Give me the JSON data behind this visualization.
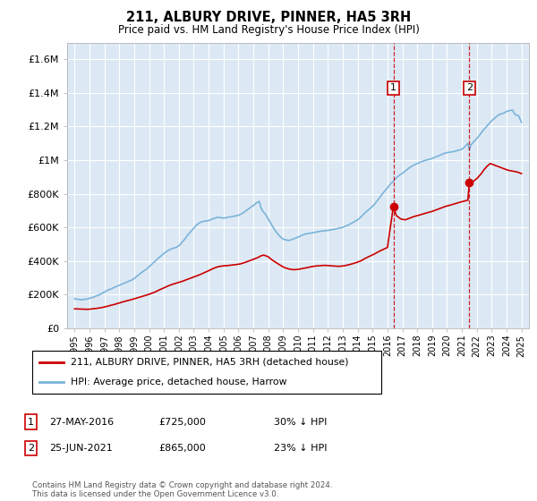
{
  "title": "211, ALBURY DRIVE, PINNER, HA5 3RH",
  "subtitle": "Price paid vs. HM Land Registry's House Price Index (HPI)",
  "footnote": "Contains HM Land Registry data © Crown copyright and database right 2024.\nThis data is licensed under the Open Government Licence v3.0.",
  "legend_line1": "211, ALBURY DRIVE, PINNER, HA5 3RH (detached house)",
  "legend_line2": "HPI: Average price, detached house, Harrow",
  "sale1_label": "1",
  "sale1_date": "27-MAY-2016",
  "sale1_price": "£725,000",
  "sale1_pct": "30% ↓ HPI",
  "sale2_label": "2",
  "sale2_date": "25-JUN-2021",
  "sale2_price": "£865,000",
  "sale2_pct": "23% ↓ HPI",
  "sale1_year": 2016.4,
  "sale2_year": 2021.5,
  "sale1_value": 725000,
  "sale2_value": 865000,
  "hpi_color": "#7ab3d9",
  "price_color": "#cc0000",
  "plot_bg": "#dce9f5",
  "grid_color": "#ffffff",
  "marker_box_color": "#cc0000",
  "dashed_line_color": "#cc0000",
  "ylim": [
    0,
    1700000
  ],
  "yticks": [
    0,
    200000,
    400000,
    600000,
    800000,
    1000000,
    1200000,
    1400000,
    1600000
  ],
  "ytick_labels": [
    "£0",
    "£200K",
    "£400K",
    "£600K",
    "£800K",
    "£1M",
    "£1.2M",
    "£1.4M",
    "£1.6M"
  ],
  "xmin": 1994.5,
  "xmax": 2025.5,
  "hpi_years": [
    1995.0,
    1995.1,
    1995.2,
    1995.3,
    1995.4,
    1995.5,
    1995.6,
    1995.7,
    1995.8,
    1995.9,
    1996.0,
    1996.1,
    1996.2,
    1996.3,
    1996.4,
    1996.5,
    1996.6,
    1996.7,
    1996.8,
    1996.9,
    1997.0,
    1997.2,
    1997.4,
    1997.6,
    1997.8,
    1998.0,
    1998.2,
    1998.4,
    1998.6,
    1998.8,
    1999.0,
    1999.2,
    1999.4,
    1999.6,
    1999.8,
    2000.0,
    2000.2,
    2000.4,
    2000.6,
    2000.8,
    2001.0,
    2001.2,
    2001.4,
    2001.6,
    2001.8,
    2002.0,
    2002.2,
    2002.4,
    2002.6,
    2002.8,
    2003.0,
    2003.2,
    2003.4,
    2003.6,
    2003.8,
    2004.0,
    2004.2,
    2004.4,
    2004.6,
    2004.8,
    2005.0,
    2005.2,
    2005.4,
    2005.6,
    2005.8,
    2006.0,
    2006.2,
    2006.4,
    2006.6,
    2006.8,
    2007.0,
    2007.2,
    2007.4,
    2007.5,
    2007.6,
    2007.8,
    2008.0,
    2008.2,
    2008.4,
    2008.6,
    2008.8,
    2009.0,
    2009.2,
    2009.4,
    2009.6,
    2009.8,
    2010.0,
    2010.2,
    2010.4,
    2010.6,
    2010.8,
    2011.0,
    2011.2,
    2011.4,
    2011.6,
    2011.8,
    2012.0,
    2012.2,
    2012.4,
    2012.6,
    2012.8,
    2013.0,
    2013.2,
    2013.4,
    2013.6,
    2013.8,
    2014.0,
    2014.2,
    2014.4,
    2014.6,
    2014.8,
    2015.0,
    2015.2,
    2015.4,
    2015.6,
    2015.8,
    2016.0,
    2016.2,
    2016.4,
    2016.6,
    2016.8,
    2017.0,
    2017.2,
    2017.4,
    2017.6,
    2017.8,
    2018.0,
    2018.2,
    2018.4,
    2018.5,
    2018.6,
    2018.8,
    2019.0,
    2019.2,
    2019.4,
    2019.6,
    2019.8,
    2020.0,
    2020.2,
    2020.4,
    2020.6,
    2020.8,
    2021.0,
    2021.2,
    2021.4,
    2021.5,
    2021.6,
    2021.8,
    2022.0,
    2022.2,
    2022.4,
    2022.6,
    2022.8,
    2023.0,
    2023.2,
    2023.4,
    2023.6,
    2023.8,
    2024.0,
    2024.2,
    2024.4,
    2024.5,
    2024.6,
    2024.8,
    2025.0
  ],
  "hpi_values": [
    175000,
    173000,
    172000,
    171000,
    170000,
    169000,
    170000,
    172000,
    173000,
    174000,
    178000,
    180000,
    182000,
    186000,
    190000,
    193000,
    196000,
    200000,
    205000,
    210000,
    215000,
    225000,
    232000,
    240000,
    248000,
    255000,
    263000,
    270000,
    278000,
    285000,
    295000,
    310000,
    325000,
    338000,
    350000,
    365000,
    382000,
    398000,
    415000,
    430000,
    445000,
    458000,
    468000,
    475000,
    480000,
    490000,
    510000,
    530000,
    555000,
    575000,
    595000,
    615000,
    628000,
    635000,
    638000,
    640000,
    648000,
    655000,
    660000,
    658000,
    655000,
    658000,
    662000,
    665000,
    668000,
    672000,
    680000,
    692000,
    705000,
    718000,
    730000,
    745000,
    755000,
    720000,
    700000,
    680000,
    650000,
    620000,
    590000,
    565000,
    545000,
    530000,
    525000,
    522000,
    528000,
    535000,
    542000,
    550000,
    558000,
    562000,
    565000,
    568000,
    572000,
    575000,
    578000,
    580000,
    582000,
    585000,
    588000,
    592000,
    596000,
    600000,
    608000,
    615000,
    625000,
    635000,
    645000,
    660000,
    678000,
    695000,
    710000,
    725000,
    745000,
    768000,
    792000,
    815000,
    835000,
    858000,
    875000,
    895000,
    910000,
    922000,
    935000,
    950000,
    962000,
    972000,
    980000,
    988000,
    995000,
    998000,
    1000000,
    1005000,
    1010000,
    1018000,
    1025000,
    1032000,
    1040000,
    1045000,
    1048000,
    1050000,
    1055000,
    1060000,
    1065000,
    1080000,
    1100000,
    1060000,
    1090000,
    1110000,
    1130000,
    1150000,
    1175000,
    1195000,
    1215000,
    1235000,
    1250000,
    1265000,
    1275000,
    1280000,
    1290000,
    1295000,
    1298000,
    1280000,
    1270000,
    1265000,
    1225000
  ],
  "price_years": [
    1995.0,
    1995.3,
    1995.6,
    1995.9,
    1996.2,
    1996.5,
    1996.8,
    1997.1,
    1997.4,
    1997.7,
    1998.0,
    1998.3,
    1998.6,
    1998.9,
    1999.2,
    1999.5,
    1999.8,
    2000.1,
    2000.4,
    2000.7,
    2001.0,
    2001.3,
    2001.6,
    2001.9,
    2002.2,
    2002.5,
    2002.8,
    2003.1,
    2003.4,
    2003.7,
    2004.0,
    2004.3,
    2004.6,
    2004.9,
    2005.2,
    2005.5,
    2005.8,
    2006.1,
    2006.4,
    2006.7,
    2007.0,
    2007.3,
    2007.5,
    2007.7,
    2008.0,
    2008.2,
    2008.5,
    2008.8,
    2009.1,
    2009.4,
    2009.7,
    2010.0,
    2010.3,
    2010.6,
    2010.9,
    2011.2,
    2011.5,
    2011.8,
    2012.1,
    2012.4,
    2012.7,
    2013.0,
    2013.3,
    2013.6,
    2013.9,
    2014.2,
    2014.5,
    2014.8,
    2015.1,
    2015.4,
    2015.7,
    2016.0,
    2016.4,
    2016.6,
    2016.9,
    2017.2,
    2017.5,
    2017.8,
    2018.1,
    2018.4,
    2018.7,
    2019.0,
    2019.3,
    2019.6,
    2019.9,
    2020.2,
    2020.5,
    2020.8,
    2021.1,
    2021.4,
    2021.5,
    2021.7,
    2022.0,
    2022.3,
    2022.5,
    2022.7,
    2022.9,
    2023.2,
    2023.5,
    2023.8,
    2024.1,
    2024.4,
    2024.7,
    2025.0
  ],
  "price_values": [
    115000,
    114000,
    113000,
    112000,
    115000,
    118000,
    122000,
    128000,
    135000,
    142000,
    150000,
    158000,
    165000,
    172000,
    180000,
    188000,
    196000,
    205000,
    215000,
    228000,
    240000,
    252000,
    262000,
    270000,
    278000,
    288000,
    298000,
    308000,
    318000,
    330000,
    342000,
    355000,
    365000,
    370000,
    372000,
    375000,
    378000,
    382000,
    390000,
    400000,
    410000,
    420000,
    430000,
    435000,
    425000,
    410000,
    392000,
    375000,
    360000,
    352000,
    348000,
    350000,
    355000,
    360000,
    366000,
    370000,
    372000,
    374000,
    372000,
    370000,
    368000,
    370000,
    375000,
    382000,
    390000,
    400000,
    415000,
    428000,
    440000,
    455000,
    468000,
    480000,
    725000,
    670000,
    650000,
    645000,
    655000,
    665000,
    672000,
    680000,
    688000,
    695000,
    705000,
    715000,
    725000,
    732000,
    740000,
    748000,
    755000,
    762000,
    865000,
    870000,
    890000,
    920000,
    945000,
    965000,
    980000,
    970000,
    960000,
    950000,
    940000,
    935000,
    930000,
    920000
  ]
}
